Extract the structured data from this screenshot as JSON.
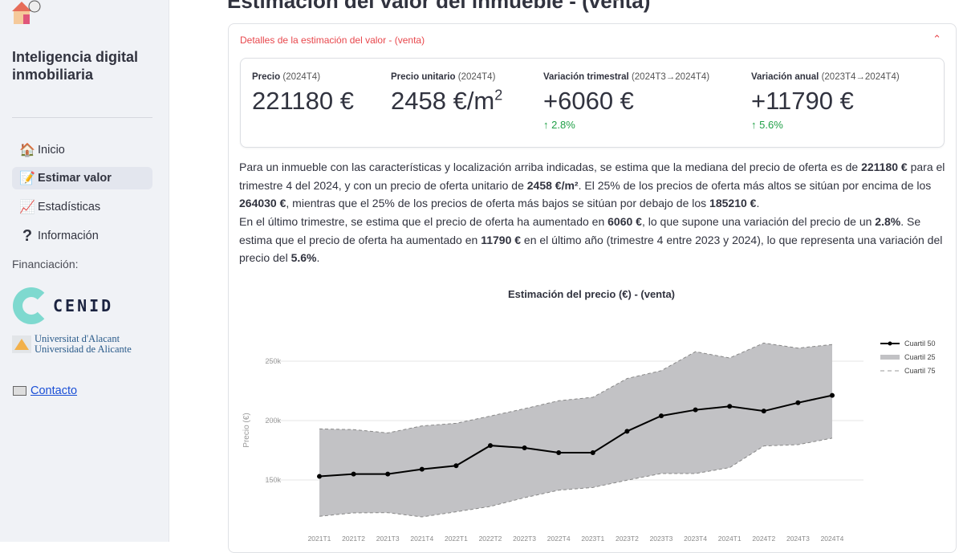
{
  "sidebar": {
    "app_title": "Inteligencia digital inmobiliaria",
    "items": [
      {
        "label": "Inicio",
        "icon": "house-icon",
        "glyph": "🏠"
      },
      {
        "label": "Estimar valor",
        "icon": "memo-icon",
        "glyph": "📝",
        "active": true
      },
      {
        "label": "Estadísticas",
        "icon": "chart-increasing-icon",
        "glyph": "📈"
      },
      {
        "label": "Información",
        "icon": "question-icon",
        "glyph": "?"
      }
    ],
    "funding_label": "Financiación:",
    "cenid": "CENID",
    "ua_line1": "Universitat d'Alacant",
    "ua_line2": "Universidad de Alicante",
    "contact": "Contacto"
  },
  "main": {
    "title": "Estimación del valor del inmueble - (venta)",
    "expander_title": "Detalles de la estimación del valor - (venta)",
    "metrics": [
      {
        "label": "Precio",
        "period": "(2024T4)",
        "value": "221180 €"
      },
      {
        "label": "Precio unitario",
        "period": "(2024T4)",
        "value": "2458 €/m",
        "sup": "2"
      },
      {
        "label": "Variación trimestral",
        "period": "(2024T3→2024T4)",
        "value": "+6060 €",
        "delta": "2.8%"
      },
      {
        "label": "Variación anual",
        "period": "(2023T4→2024T4)",
        "value": "+11790 €",
        "delta": "5.6%"
      }
    ],
    "paragraphs": [
      [
        {
          "t": "Para un inmueble con las características y localización arriba indicadas, se estima que la mediana del precio de oferta es de "
        },
        {
          "t": "221180 €",
          "b": true
        },
        {
          "t": " para el trimestre 4 del 2024, y con un precio de oferta unitario de "
        },
        {
          "t": "2458 €/m²",
          "b": true
        },
        {
          "t": ". El 25% de los precios de oferta más altos se sitúan por encima de los "
        },
        {
          "t": "264030 €",
          "b": true
        },
        {
          "t": ", mientras que el 25% de los precios de oferta más bajos se sitúan por debajo de los "
        },
        {
          "t": "185210 €",
          "b": true
        },
        {
          "t": "."
        }
      ],
      [
        {
          "t": "En el último trimestre, se estima que el precio de oferta ha aumentado en "
        },
        {
          "t": "6060 €",
          "b": true
        },
        {
          "t": ", lo que supone una variación del precio de un "
        },
        {
          "t": "2.8%",
          "b": true
        },
        {
          "t": ". Se estima que el precio de oferta ha aumentado en "
        },
        {
          "t": "11790 €",
          "b": true
        },
        {
          "t": " en el último año (trimestre 4 entre 2023 y 2024), lo que representa una variación del precio del "
        },
        {
          "t": "5.6%",
          "b": true
        },
        {
          "t": "."
        }
      ]
    ]
  },
  "colors": {
    "accent": "#e8474c",
    "delta": "#21a048",
    "band": "#c2c2c5",
    "median": "#000000"
  },
  "chart_data": {
    "type": "area",
    "title": "Estimación del precio (€) - (venta)",
    "ylabel": "Precio (€)",
    "xlabel": "",
    "ylim": [
      115000,
      270000
    ],
    "yticks": [
      150000,
      200000,
      250000
    ],
    "ytick_labels": [
      "150k",
      "200k",
      "250k"
    ],
    "grid": true,
    "legend_position": "top-right",
    "categories": [
      "2021T1",
      "2021T2",
      "2021T3",
      "2021T4",
      "2022T1",
      "2022T2",
      "2022T3",
      "2022T4",
      "2023T1",
      "2023T2",
      "2023T3",
      "2023T4",
      "2024T1",
      "2024T2",
      "2024T3",
      "2024T4"
    ],
    "series": [
      {
        "name": "Cuartil 50",
        "style": "line-markers",
        "values": [
          153000,
          155000,
          155000,
          159000,
          162000,
          179000,
          177000,
          173000,
          173000,
          191000,
          204000,
          209000,
          212000,
          208000,
          215000,
          221180
        ]
      },
      {
        "name": "Cuartil 25",
        "style": "fill",
        "values": [
          119400,
          122300,
          122500,
          118900,
          123200,
          127700,
          135100,
          141400,
          143700,
          149800,
          155400,
          155400,
          160400,
          178600,
          179700,
          185210
        ]
      },
      {
        "name": "Cuartil 75",
        "style": "dashed",
        "values": [
          193000,
          192400,
          189600,
          195500,
          197700,
          203800,
          210000,
          216700,
          219600,
          235400,
          242000,
          258000,
          252700,
          265300,
          261000,
          264030
        ]
      }
    ]
  }
}
